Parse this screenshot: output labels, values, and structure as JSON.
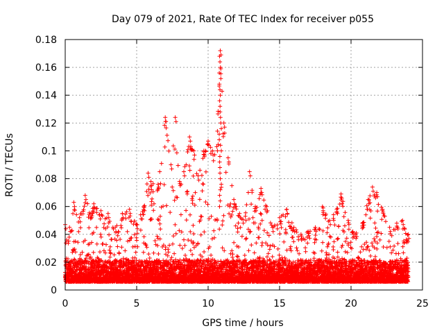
{
  "chart_data": {
    "type": "scatter",
    "title": "Day 079 of 2021, Rate Of TEC Index for receiver p055",
    "xlabel": "GPS time / hours",
    "ylabel": "ROTI / TECUs",
    "xlim": [
      0,
      25
    ],
    "ylim": [
      0,
      0.18
    ],
    "x_ticks": [
      0,
      5,
      10,
      15,
      20,
      25
    ],
    "x_tick_labels": [
      "0",
      "5",
      "10",
      "15",
      "20",
      "25"
    ],
    "y_ticks": [
      0,
      0.02,
      0.04,
      0.06,
      0.08,
      0.1,
      0.12,
      0.14,
      0.16,
      0.18
    ],
    "y_tick_labels": [
      "0",
      "0.02",
      "0.04",
      "0.06",
      "0.08",
      "0.1",
      "0.12",
      "0.14",
      "0.16",
      "0.18"
    ],
    "grid": true,
    "marker": "+",
    "marker_color": "#ff0000",
    "series": [
      {
        "name": "ROTI",
        "envelope_note": "approximate upper envelope of the point cloud (hours, TECU/min)",
        "envelope": [
          [
            0.0,
            0.047
          ],
          [
            0.3,
            0.045
          ],
          [
            0.6,
            0.063
          ],
          [
            1.0,
            0.052
          ],
          [
            1.4,
            0.068
          ],
          [
            1.8,
            0.055
          ],
          [
            2.0,
            0.062
          ],
          [
            2.5,
            0.057
          ],
          [
            3.0,
            0.055
          ],
          [
            3.5,
            0.045
          ],
          [
            4.0,
            0.055
          ],
          [
            4.5,
            0.058
          ],
          [
            5.0,
            0.047
          ],
          [
            5.5,
            0.06
          ],
          [
            5.8,
            0.084
          ],
          [
            6.0,
            0.078
          ],
          [
            6.5,
            0.076
          ],
          [
            7.0,
            0.124
          ],
          [
            7.4,
            0.09
          ],
          [
            7.7,
            0.124
          ],
          [
            8.0,
            0.078
          ],
          [
            8.3,
            0.085
          ],
          [
            8.7,
            0.11
          ],
          [
            9.0,
            0.1
          ],
          [
            9.3,
            0.082
          ],
          [
            9.7,
            0.1
          ],
          [
            10.0,
            0.107
          ],
          [
            10.3,
            0.1
          ],
          [
            10.6,
            0.103
          ],
          [
            10.85,
            0.172
          ],
          [
            11.1,
            0.12
          ],
          [
            11.4,
            0.095
          ],
          [
            11.8,
            0.065
          ],
          [
            12.2,
            0.055
          ],
          [
            12.6,
            0.053
          ],
          [
            12.9,
            0.085
          ],
          [
            13.3,
            0.06
          ],
          [
            13.7,
            0.073
          ],
          [
            14.1,
            0.06
          ],
          [
            14.5,
            0.045
          ],
          [
            15.0,
            0.052
          ],
          [
            15.5,
            0.058
          ],
          [
            16.0,
            0.045
          ],
          [
            16.5,
            0.04
          ],
          [
            17.0,
            0.042
          ],
          [
            17.5,
            0.045
          ],
          [
            18.0,
            0.06
          ],
          [
            18.5,
            0.05
          ],
          [
            19.0,
            0.058
          ],
          [
            19.3,
            0.069
          ],
          [
            19.8,
            0.05
          ],
          [
            20.3,
            0.04
          ],
          [
            20.8,
            0.048
          ],
          [
            21.2,
            0.065
          ],
          [
            21.5,
            0.074
          ],
          [
            21.8,
            0.07
          ],
          [
            22.2,
            0.058
          ],
          [
            22.7,
            0.045
          ],
          [
            23.2,
            0.048
          ],
          [
            23.6,
            0.05
          ],
          [
            24.0,
            0.04
          ]
        ],
        "baseline": 0.006,
        "typical_level": 0.018
      }
    ]
  }
}
